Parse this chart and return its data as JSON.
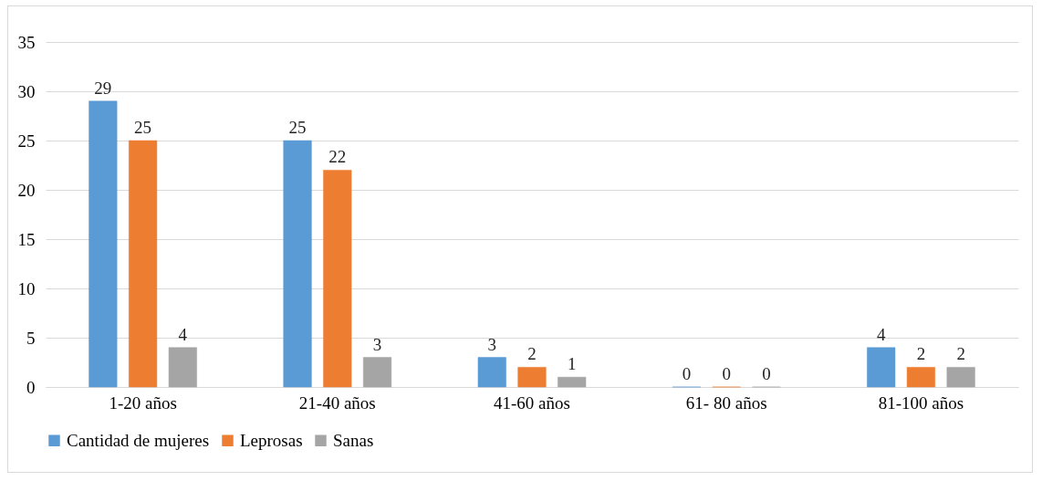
{
  "chart_data": {
    "type": "bar",
    "categories": [
      "1-20 años",
      "21-40 años",
      "41-60 años",
      "61- 80 años",
      "81-100 años"
    ],
    "series": [
      {
        "name": "Cantidad de mujeres",
        "color": "#5b9bd5",
        "values": [
          29,
          25,
          3,
          0,
          4
        ]
      },
      {
        "name": "Leprosas",
        "color": "#ed7d31",
        "values": [
          25,
          22,
          2,
          0,
          2
        ]
      },
      {
        "name": "Sanas",
        "color": "#a5a5a5",
        "values": [
          4,
          3,
          1,
          0,
          2
        ]
      }
    ],
    "ylim": [
      0,
      35
    ],
    "yticks": [
      0,
      5,
      10,
      15,
      20,
      25,
      30,
      35
    ],
    "grid": "y",
    "legend": "bottom",
    "data_labels": true
  }
}
